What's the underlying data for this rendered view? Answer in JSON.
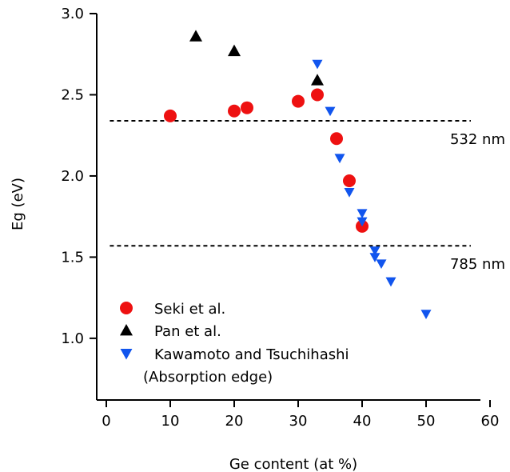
{
  "chart_data": {
    "type": "scatter",
    "xlabel": "Ge content (at %)",
    "ylabel": "Eg (eV)",
    "xlim": [
      -1.5,
      58.5
    ],
    "ylim": [
      0.62,
      3.0
    ],
    "x_ticks": [
      0,
      10,
      20,
      30,
      40,
      50,
      60
    ],
    "y_ticks": [
      1.0,
      1.5,
      2.0,
      2.5,
      3.0
    ],
    "x_tick_labels": [
      "0",
      "10",
      "20",
      "30",
      "40",
      "50",
      "60"
    ],
    "y_tick_labels": [
      "1.0",
      "1.5",
      "2.0",
      "2.5",
      "3.0"
    ],
    "legend_position": "bottom-left",
    "grid": false,
    "series": [
      {
        "name": "Seki et al.",
        "marker": "circle",
        "color": "#ee1111",
        "points": [
          {
            "x": 10,
            "y": 2.37
          },
          {
            "x": 20,
            "y": 2.4
          },
          {
            "x": 22,
            "y": 2.42
          },
          {
            "x": 30,
            "y": 2.46
          },
          {
            "x": 33,
            "y": 2.5
          },
          {
            "x": 36,
            "y": 2.23
          },
          {
            "x": 38,
            "y": 1.97
          },
          {
            "x": 40,
            "y": 1.69
          }
        ]
      },
      {
        "name": "Pan et al.",
        "marker": "triangle-up",
        "color": "#000000",
        "points": [
          {
            "x": 14,
            "y": 2.86
          },
          {
            "x": 20,
            "y": 2.77
          },
          {
            "x": 33,
            "y": 2.59
          }
        ]
      },
      {
        "name": "Kawamoto and Tsuchihashi",
        "name_line2": "(Absorption edge)",
        "marker": "triangle-down",
        "color": "#1155ee",
        "points": [
          {
            "x": 33,
            "y": 2.69
          },
          {
            "x": 35,
            "y": 2.4
          },
          {
            "x": 36.5,
            "y": 2.11
          },
          {
            "x": 38,
            "y": 1.9
          },
          {
            "x": 40,
            "y": 1.77
          },
          {
            "x": 40,
            "y": 1.72
          },
          {
            "x": 42,
            "y": 1.54
          },
          {
            "x": 42,
            "y": 1.5
          },
          {
            "x": 43,
            "y": 1.46
          },
          {
            "x": 44.5,
            "y": 1.35
          },
          {
            "x": 50,
            "y": 1.15
          }
        ]
      }
    ],
    "reference_lines": [
      {
        "y": 2.34,
        "x_range": [
          0.8,
          58.5
        ],
        "style": "dashed",
        "label": "532 nm"
      },
      {
        "y": 1.57,
        "x_range": [
          0.8,
          58.5
        ],
        "style": "dashed",
        "label": "785 nm"
      }
    ]
  }
}
